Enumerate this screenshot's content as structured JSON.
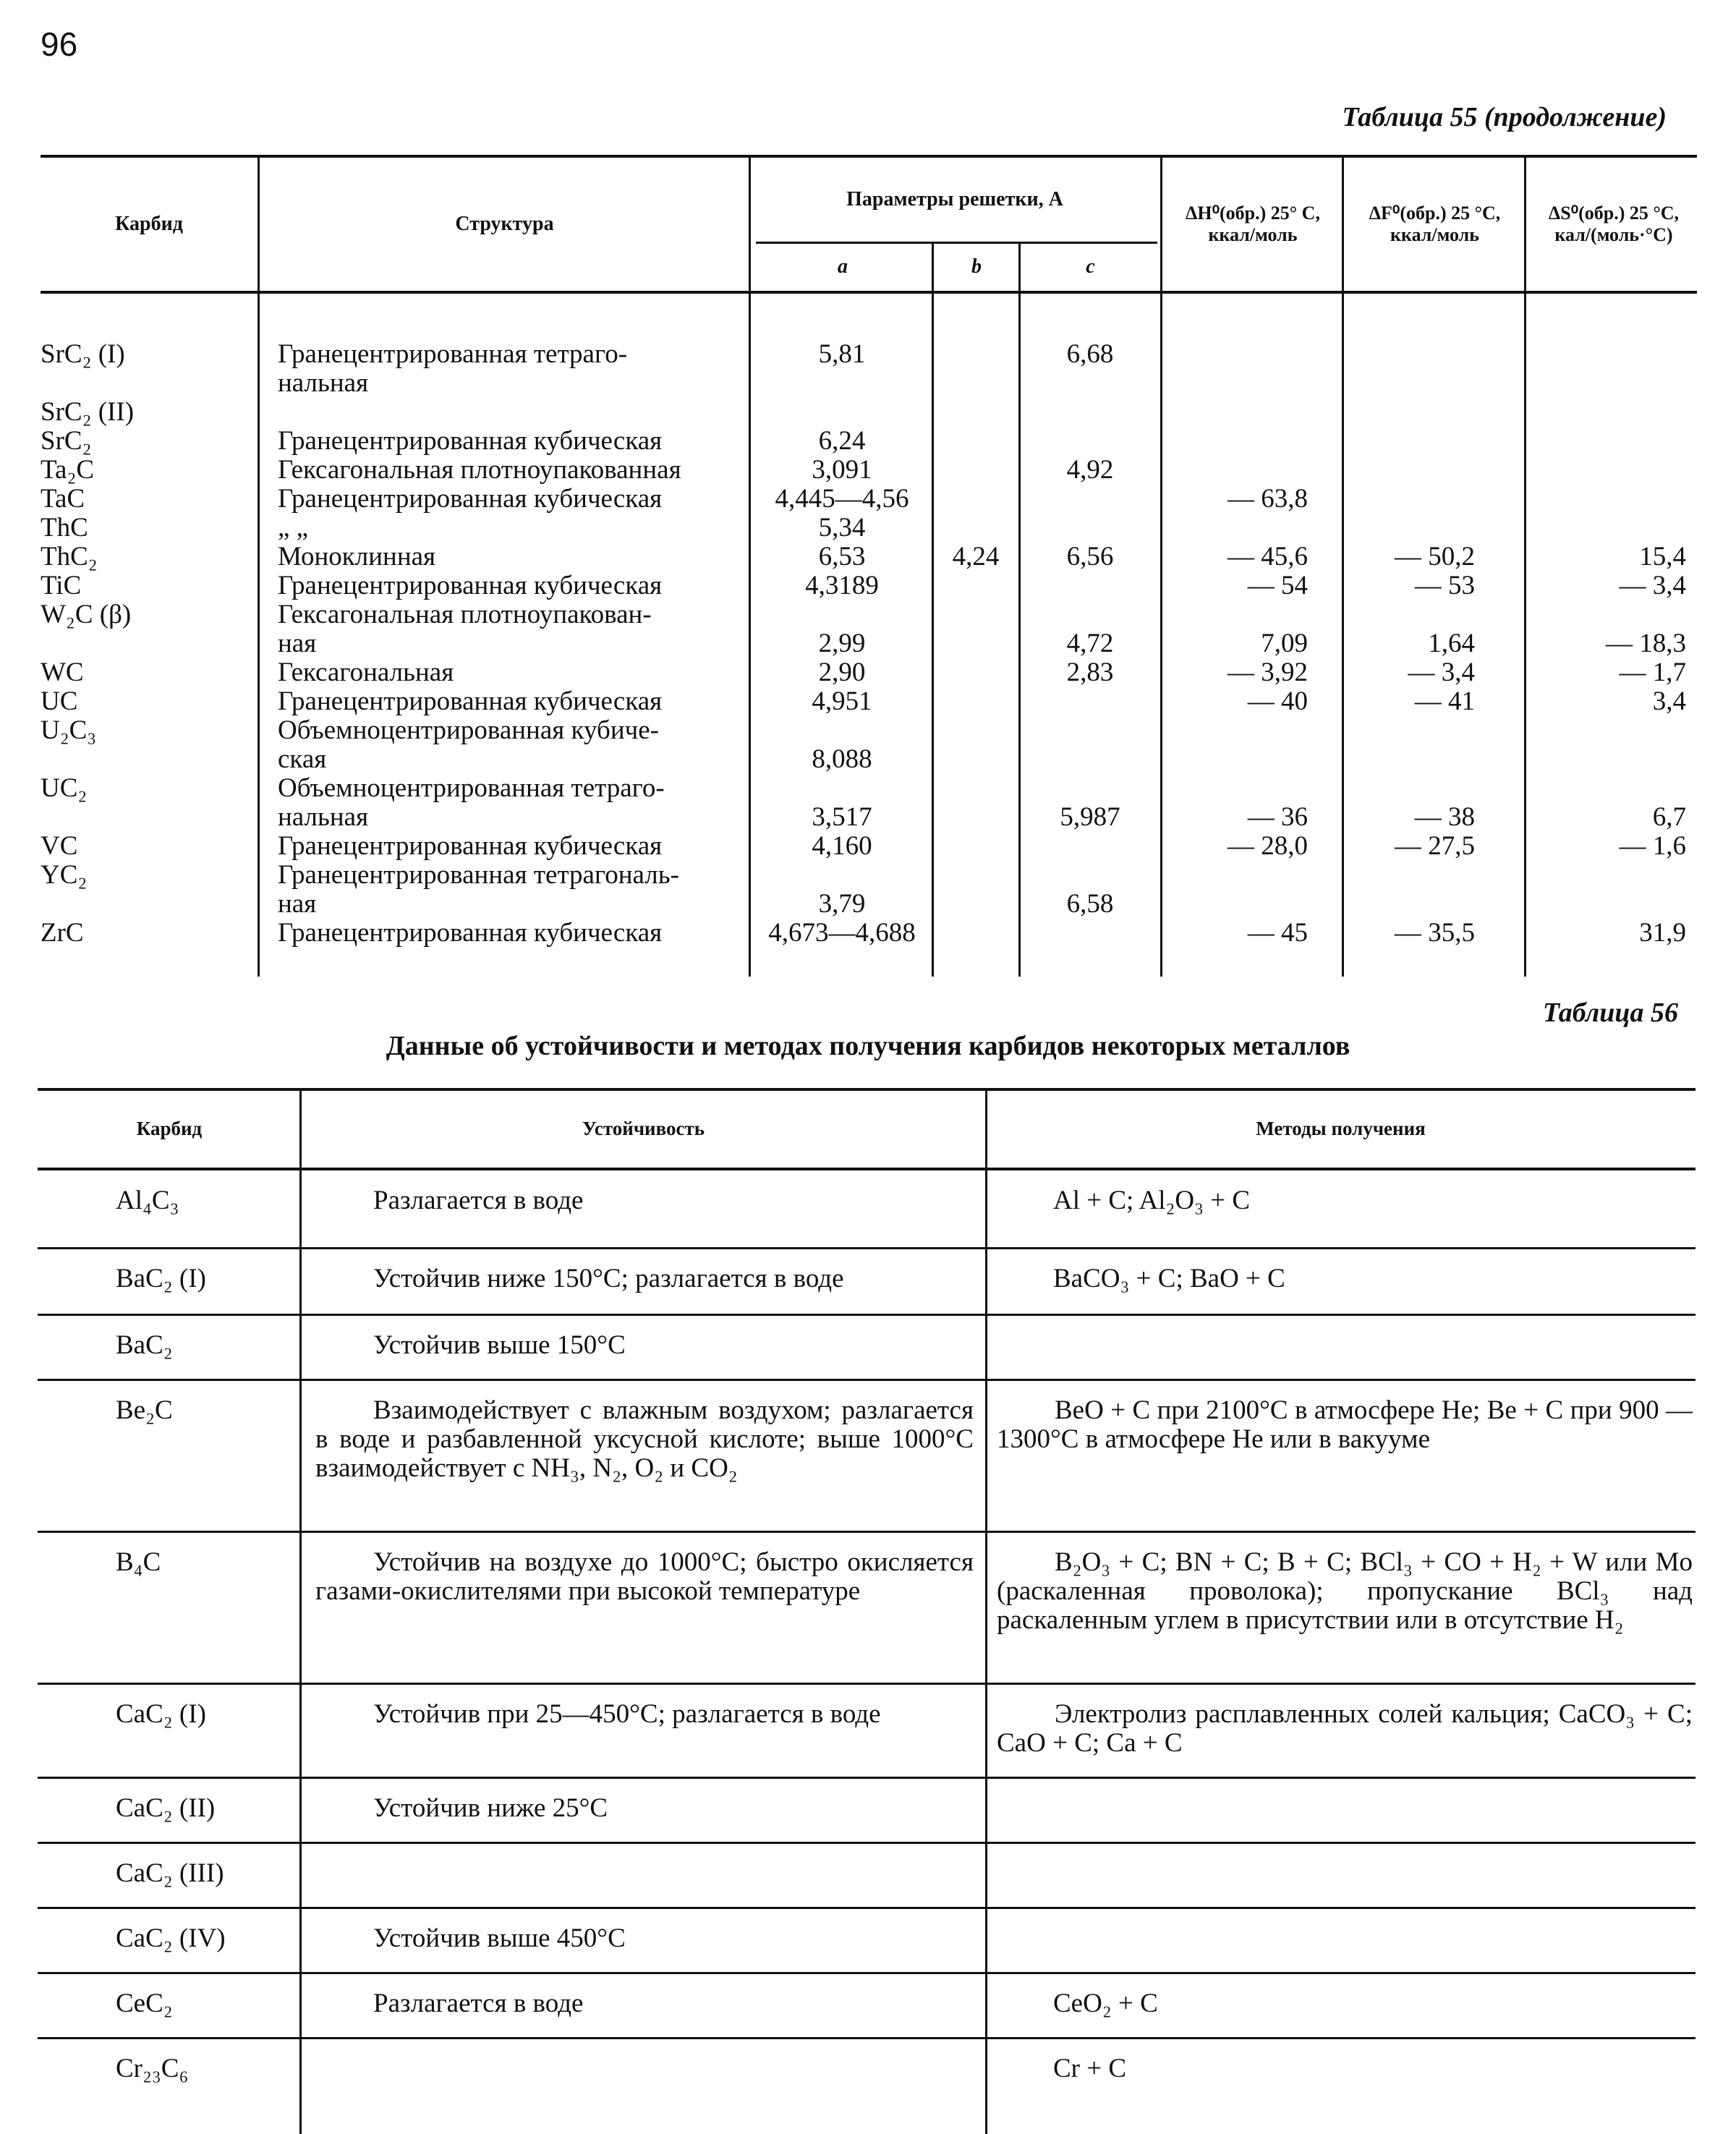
{
  "page_number": "96",
  "table55": {
    "caption": "Таблица 55 (продолжение)",
    "headers": {
      "carbide": "Карбид",
      "structure": "Структура",
      "lattice": "Параметры решетки, А",
      "a": "a",
      "b": "b",
      "c": "c",
      "dH": "ΔH⁰(обр.) 25° C,\nккал/моль",
      "dF": "ΔF⁰(обр.) 25 °C,\nккал/моль",
      "dS": "ΔS⁰(обр.) 25 °C,\nкал/(моль·°C)"
    },
    "rows": [
      {
        "carbide": "SrC₂ (I)",
        "structure": "Гранецентрированная    тетраго-\n   нальная",
        "a": "5,81",
        "b": "",
        "c": "6,68",
        "dH": "",
        "dF": "",
        "dS": "",
        "lines": 2,
        "top": true
      },
      {
        "carbide": "SrC₂ (II)",
        "structure": "",
        "a": "",
        "b": "",
        "c": "",
        "dH": "",
        "dF": "",
        "dS": "",
        "lines": 1
      },
      {
        "carbide": "SrC₂",
        "structure": "Гранецентрированная кубическая",
        "a": "6,24",
        "b": "",
        "c": "",
        "dH": "",
        "dF": "",
        "dS": "",
        "lines": 1
      },
      {
        "carbide": "Ta₂C",
        "structure": "Гексагональная плотноупакованная",
        "a": "3,091",
        "b": "",
        "c": "4,92",
        "dH": "",
        "dF": "",
        "dS": "",
        "lines": 1
      },
      {
        "carbide": "TaC",
        "structure": "Гранецентрированная кубическая",
        "a": "4,445—4,56",
        "b": "",
        "c": "",
        "dH": "— 63,8",
        "dF": "",
        "dS": "",
        "lines": 1
      },
      {
        "carbide": "ThC",
        "structure": "               „                          „",
        "a": "5,34",
        "b": "",
        "c": "",
        "dH": "",
        "dF": "",
        "dS": "",
        "lines": 1
      },
      {
        "carbide": "ThC₂",
        "structure": "Моноклинная",
        "a": "6,53",
        "b": "4,24",
        "c": "6,56",
        "dH": "— 45,6",
        "dF": "— 50,2",
        "dS": "15,4",
        "lines": 1
      },
      {
        "carbide": "TiC",
        "structure": "Гранецентрированная кубическая",
        "a": "4,3189",
        "b": "",
        "c": "",
        "dH": "— 54",
        "dF": "— 53",
        "dS": "— 3,4",
        "lines": 1
      },
      {
        "carbide": "W₂C (β)",
        "structure": "Гексагональная  плотноупакован-\n   ная",
        "a": "2,99",
        "b": "",
        "c": "4,72",
        "dH": "7,09",
        "dF": "1,64",
        "dS": "— 18,3",
        "lines": 2
      },
      {
        "carbide": "WC",
        "structure": "Гексагональная",
        "a": "2,90",
        "b": "",
        "c": "2,83",
        "dH": "— 3,92",
        "dF": "— 3,4",
        "dS": "— 1,7",
        "lines": 1
      },
      {
        "carbide": "UC",
        "structure": "Гранецентрированная кубическая",
        "a": "4,951",
        "b": "",
        "c": "",
        "dH": "— 40",
        "dF": "— 41",
        "dS": "3,4",
        "lines": 1
      },
      {
        "carbide": "U₂C₃",
        "structure": "Объемноцентрированная кубиче-\n   ская",
        "a": "8,088",
        "b": "",
        "c": "",
        "dH": "",
        "dF": "",
        "dS": "",
        "lines": 2
      },
      {
        "carbide": "UC₂",
        "structure": "Объемноцентрированная тетраго-\n   нальная",
        "a": "3,517",
        "b": "",
        "c": "5,987",
        "dH": "— 36",
        "dF": "— 38",
        "dS": "6,7",
        "lines": 2
      },
      {
        "carbide": "VC",
        "structure": "Гранецентрированная кубическая",
        "a": "4,160",
        "b": "",
        "c": "",
        "dH": "— 28,0",
        "dF": "— 27,5",
        "dS": "— 1,6",
        "lines": 1
      },
      {
        "carbide": "YC₂",
        "structure": "Гранецентрированная тетрагональ-\n   ная",
        "a": "3,79",
        "b": "",
        "c": "6,58",
        "dH": "",
        "dF": "",
        "dS": "",
        "lines": 2
      },
      {
        "carbide": "ZrC",
        "structure": "Гранецентрированная кубическая",
        "a": "4,673—4,688",
        "b": "",
        "c": "",
        "dH": "— 45",
        "dF": "— 35,5",
        "dS": "31,9",
        "lines": 1
      }
    ]
  },
  "table56": {
    "caption": "Таблица 56",
    "title": "Данные об устойчивости и методах получения карбидов некоторых металлов",
    "headers": {
      "carbide": "Карбид",
      "stability": "Устойчивость",
      "methods": "Методы получения"
    },
    "rows": [
      {
        "carbide": "Al₄C₃",
        "stability": "Разлагается в воде",
        "methods": "Al + C;  Al₂O₃ + C"
      },
      {
        "carbide": "BaC₂ (I)",
        "stability": "Устойчив ниже 150°C; разлагается в воде",
        "methods": "BaCO₃ + C;  BaO + C"
      },
      {
        "carbide": "BaC₂",
        "stability": "Устойчив выше 150°C",
        "methods": ""
      },
      {
        "carbide": "Be₂C",
        "stability": "Взаимодействует с влажным воздухом; разлагается в воде и разбавленной уксусной кислоте; выше 1000°C взаимодействует с NH₃, N₂, O₂ и CO₂",
        "methods": "BeO + C при 2100°C в атмосфере He; Be + C при 900 — 1300°C в атмосфере He или в вакууме"
      },
      {
        "carbide": "B₄C",
        "stability": "Устойчив на воздухе до 1000°C; быстро окисляется газами-окислителями при высокой температуре",
        "methods": "B₂O₃ + C; BN + C; B + C; BCl₃ + CO + H₂ + W или Mo (раскаленная проволока); пропускание BCl₃ над раскаленным углем в присутствии или в отсутствие H₂"
      },
      {
        "carbide": "CaC₂ (I)",
        "stability": "Устойчив при 25—450°C; разлагается в воде",
        "methods": "Электролиз расплавленных солей кальция; CaCO₃ + C;  CaO + C;  Ca + C"
      },
      {
        "carbide": "CaC₂ (II)",
        "stability": "Устойчив ниже 25°C",
        "methods": ""
      },
      {
        "carbide": "CaC₂ (III)",
        "stability": "",
        "methods": ""
      },
      {
        "carbide": "CaC₂ (IV)",
        "stability": "Устойчив выше 450°C",
        "methods": ""
      },
      {
        "carbide": "CeC₂",
        "stability": "Разлагается в воде",
        "methods": "CeO₂ + C"
      },
      {
        "carbide": "Cr₂₃C₆",
        "stability": "",
        "methods": "Cr + C"
      }
    ]
  }
}
